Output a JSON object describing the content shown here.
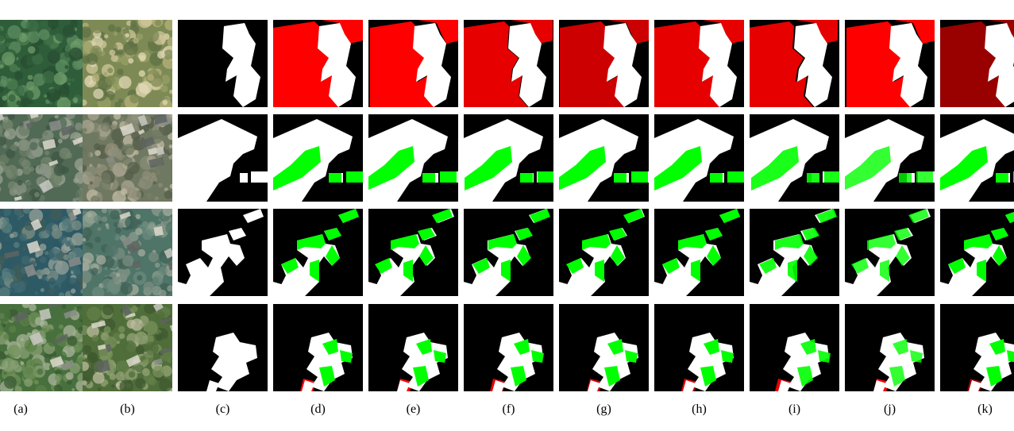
{
  "figure": {
    "columns": [
      {
        "label": "(a)",
        "kind": "photo",
        "tone": "t1"
      },
      {
        "label": "(b)",
        "kind": "photo",
        "tone": "t2"
      },
      {
        "label": "(c)",
        "kind": "mask"
      },
      {
        "label": "(d)",
        "kind": "result"
      },
      {
        "label": "(e)",
        "kind": "result"
      },
      {
        "label": "(f)",
        "kind": "result"
      },
      {
        "label": "(g)",
        "kind": "result"
      },
      {
        "label": "(h)",
        "kind": "result"
      },
      {
        "label": "(i)",
        "kind": "result"
      },
      {
        "label": "(j)",
        "kind": "result"
      },
      {
        "label": "(k)",
        "kind": "result"
      }
    ],
    "rows": 4,
    "colors": {
      "background": "#000000",
      "change_detected": "#ffffff",
      "false_positive": "#ff0000",
      "false_negative": "#00ff00"
    }
  }
}
